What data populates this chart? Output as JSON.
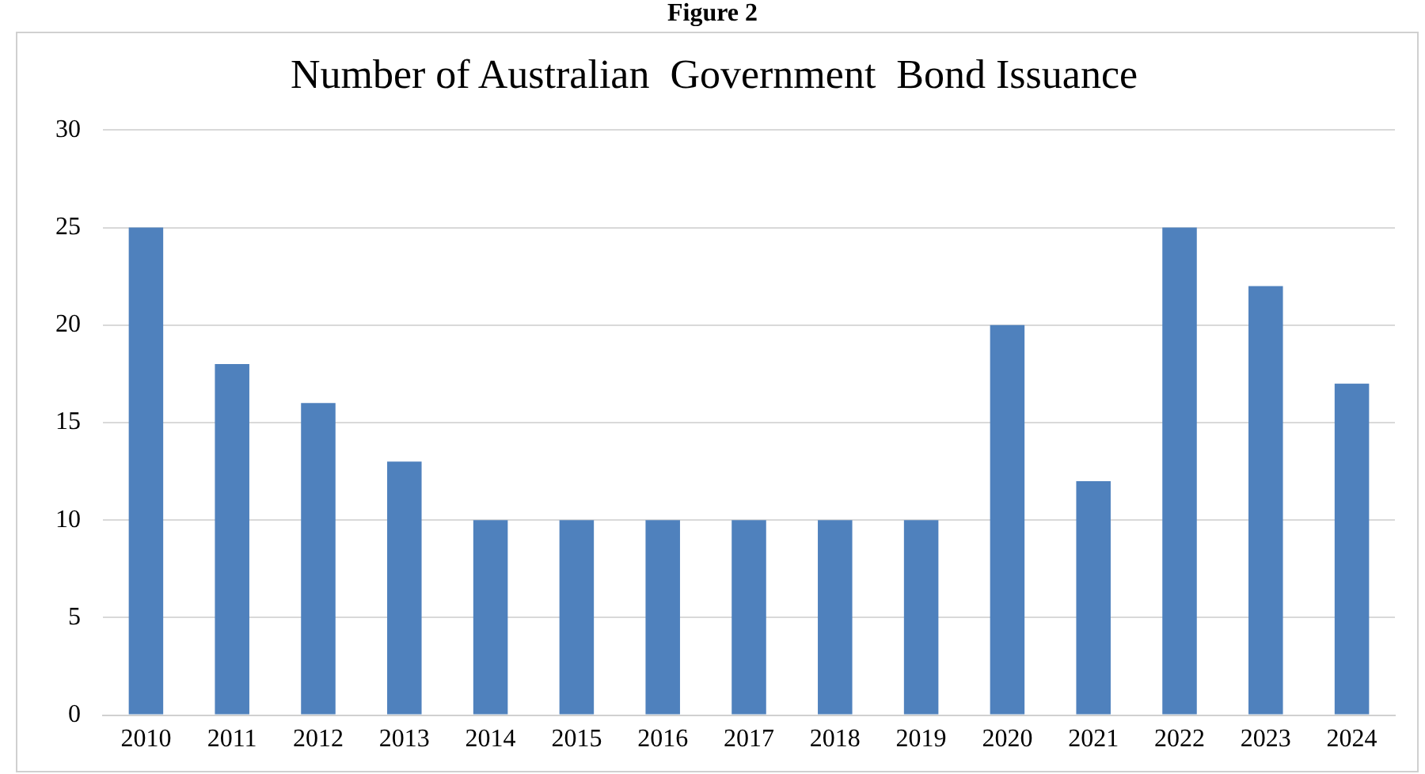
{
  "chart_data": {
    "type": "bar",
    "title": "Number of Australian  Government  Bond Issuance",
    "categories": [
      "2010",
      "2011",
      "2012",
      "2013",
      "2014",
      "2015",
      "2016",
      "2017",
      "2018",
      "2019",
      "2020",
      "2021",
      "2022",
      "2023",
      "2024"
    ],
    "values": [
      25,
      18,
      16,
      13,
      10,
      10,
      10,
      10,
      10,
      10,
      20,
      12,
      25,
      22,
      17
    ],
    "color": "#4f81bd",
    "ylim": [
      0,
      30
    ],
    "yticks": [
      0,
      5,
      10,
      15,
      20,
      25,
      30
    ],
    "grid": "y",
    "legend": false,
    "annotations": [
      "Figure 2"
    ]
  }
}
